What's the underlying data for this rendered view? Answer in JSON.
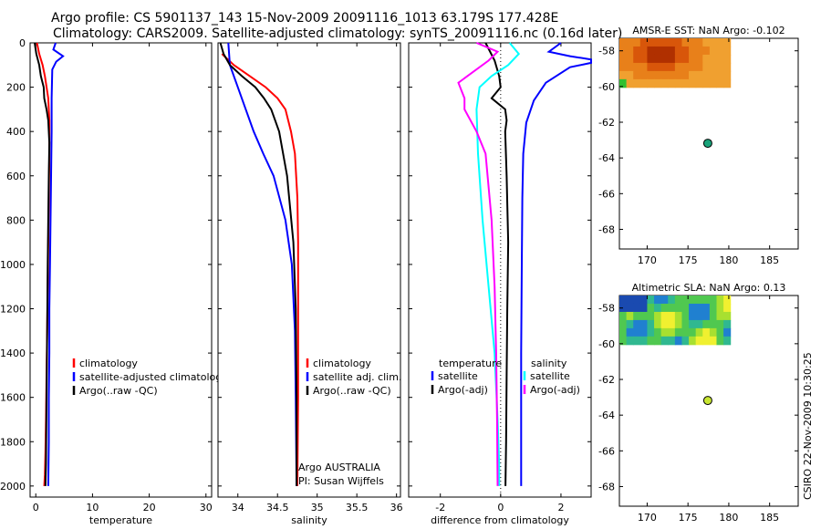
{
  "header": {
    "line1": "Argo profile: CS 5901137_143 15-Nov-2009 20091116_1013 63.179S 177.428E",
    "line2": "Climatology: CARS2009. Satellite-adjusted climatology: synTS_20091116.nc (0.16d later)"
  },
  "credit": {
    "line1": "Argo AUSTRALIA",
    "line2": "PI: Susan Wijffels",
    "stamp": "CSIRO 22-Nov-2009 10:30:25"
  },
  "colors": {
    "climatology": "#ff0000",
    "satellite": "#0000ff",
    "argo": "#000000",
    "sal_satellite": "#00ffff",
    "sal_argo": "#ff00ff",
    "float_marker_sst": "#1aa37a",
    "float_marker_sla": "#c8e632"
  },
  "chart_data": [
    {
      "type": "line",
      "panel": "temperature",
      "xlabel": "temperature",
      "ylabel": "",
      "xlim": [
        -1,
        31
      ],
      "ylim": [
        2050,
        0
      ],
      "xticks": [
        "0",
        "10",
        "20",
        "30"
      ],
      "yticks": [
        "0",
        "200",
        "400",
        "600",
        "800",
        "1000",
        "1200",
        "1400",
        "1600",
        "1800",
        "2000"
      ],
      "legend": [
        "climatology",
        "satellite-adjusted climatology",
        "Argo(..raw -QC)"
      ],
      "legend_placement": "lower-right",
      "series": [
        {
          "name": "climatology",
          "x": [
            0.2,
            0.6,
            1.2,
            1.6,
            2.2,
            2.4,
            2.4,
            2.3,
            2.2,
            2.1,
            2.0,
            1.9,
            1.8,
            1.7,
            1.6,
            1.5
          ],
          "y": [
            0,
            50,
            100,
            150,
            250,
            350,
            500,
            700,
            900,
            1100,
            1300,
            1500,
            1700,
            1850,
            1950,
            2000
          ]
        },
        {
          "name": "satellite-adjusted climatology",
          "x": [
            3.5,
            3.1,
            4.8,
            3.6,
            2.9,
            2.8,
            2.8,
            2.7,
            2.6,
            2.5,
            2.4,
            2.4,
            2.3,
            2.3,
            2.2
          ],
          "y": [
            0,
            30,
            60,
            85,
            120,
            250,
            400,
            600,
            800,
            1000,
            1200,
            1400,
            1600,
            1800,
            2000
          ]
        },
        {
          "name": "Argo(..raw -QC)",
          "x": [
            -0.2,
            0.1,
            0.6,
            0.9,
            1.4,
            1.5,
            1.9,
            2.2,
            2.4,
            2.3,
            2.2,
            2.1,
            2.0,
            1.9,
            1.8,
            1.7
          ],
          "y": [
            0,
            50,
            100,
            150,
            200,
            250,
            300,
            350,
            450,
            600,
            800,
            1000,
            1300,
            1600,
            1900,
            2000
          ]
        }
      ]
    },
    {
      "type": "line",
      "panel": "salinity",
      "xlabel": "salinity",
      "xlim": [
        33.75,
        36.05
      ],
      "ylim": [
        2050,
        0
      ],
      "xticks": [
        "34",
        "34.5",
        "35",
        "35.5",
        "36"
      ],
      "legend": [
        "climatology",
        "satellite adj. clim.",
        "Argo(..raw -QC)"
      ],
      "legend_placement": "lower-right",
      "series": [
        {
          "name": "climatology",
          "x": [
            33.8,
            33.95,
            34.15,
            34.35,
            34.5,
            34.6,
            34.67,
            34.72,
            34.75,
            34.76,
            34.76,
            34.76,
            34.75
          ],
          "y": [
            50,
            100,
            150,
            200,
            250,
            300,
            400,
            500,
            700,
            900,
            1200,
            1600,
            2000
          ]
        },
        {
          "name": "satellite adj. clim.",
          "x": [
            33.88,
            33.9,
            34.0,
            34.1,
            34.2,
            34.32,
            34.45,
            34.6,
            34.68,
            34.72,
            34.73,
            34.74
          ],
          "y": [
            0,
            100,
            200,
            300,
            400,
            500,
            600,
            800,
            1000,
            1300,
            1600,
            2000
          ]
        },
        {
          "name": "Argo(..raw -QC)",
          "x": [
            33.78,
            33.82,
            33.9,
            34.05,
            34.22,
            34.33,
            34.42,
            34.52,
            34.62,
            34.7,
            34.73,
            34.74,
            34.74
          ],
          "y": [
            0,
            50,
            100,
            150,
            200,
            250,
            300,
            400,
            600,
            900,
            1200,
            1600,
            2000
          ]
        }
      ],
      "annotations": [
        "Argo AUSTRALIA",
        "PI: Susan Wijffels"
      ]
    },
    {
      "type": "line",
      "panel": "difference",
      "xlabel": "difference from climatology",
      "xlim": [
        -3.05,
        3.0
      ],
      "ylim": [
        2050,
        0
      ],
      "xticks": [
        "-2",
        "0",
        "2"
      ],
      "legend_groups": [
        {
          "title": "temperature",
          "entries": [
            "satellite",
            "Argo(-adj)"
          ]
        },
        {
          "title": "salinity",
          "entries": [
            "satellite",
            "Argo(-adj)"
          ]
        }
      ],
      "legend_placement": "lower-center",
      "series": [
        {
          "name": "temperature satellite",
          "x": [
            2.0,
            1.6,
            2.3,
            3.0,
            3.0,
            2.3,
            1.5,
            1.1,
            0.85,
            0.75,
            0.72,
            0.7,
            0.68,
            0.68,
            0.68
          ],
          "y": [
            0,
            40,
            60,
            75,
            90,
            110,
            180,
            260,
            360,
            500,
            700,
            1000,
            1400,
            1800,
            2000
          ]
        },
        {
          "name": "temperature Argo(-adj)",
          "x": [
            -0.5,
            -0.2,
            -0.05,
            0.0,
            -0.3,
            0.15,
            0.2,
            0.15,
            0.2,
            0.25,
            0.22,
            0.2,
            0.18,
            0.16
          ],
          "y": [
            0,
            80,
            150,
            200,
            250,
            300,
            350,
            400,
            600,
            900,
            1200,
            1500,
            1800,
            2000
          ]
        },
        {
          "name": "salinity satellite",
          "x": [
            0.3,
            0.6,
            0.25,
            -0.3,
            -0.7,
            -0.8,
            -0.75,
            -0.6,
            -0.4,
            -0.2,
            -0.1,
            -0.05,
            -0.05
          ],
          "y": [
            0,
            50,
            100,
            150,
            200,
            300,
            500,
            800,
            1100,
            1400,
            1700,
            1900,
            2000
          ]
        },
        {
          "name": "salinity Argo(-adj)",
          "x": [
            -0.8,
            -0.1,
            -0.4,
            -1.4,
            -1.2,
            -1.2,
            -0.8,
            -0.5,
            -0.3,
            -0.2,
            -0.15,
            -0.12,
            -0.1
          ],
          "y": [
            0,
            40,
            80,
            180,
            250,
            300,
            400,
            500,
            800,
            1100,
            1400,
            1700,
            2000
          ]
        }
      ]
    },
    {
      "type": "heatmap",
      "panel": "sst",
      "title": "AMSR-E SST: NaN Argo: -0.102",
      "xlim": [
        166.6,
        188.5
      ],
      "ylim": [
        -69.1,
        -57.3
      ],
      "xticks": [
        "170",
        "175",
        "180",
        "185"
      ],
      "yticks": [
        "-58",
        "-60",
        "-62",
        "-64",
        "-66",
        "-68"
      ],
      "float_position": {
        "lon": 177.428,
        "lat": -63.179
      }
    },
    {
      "type": "heatmap",
      "panel": "sla",
      "title": "Altimetric SLA: NaN Argo: 0.13",
      "xlim": [
        166.6,
        188.5
      ],
      "ylim": [
        -69.1,
        -57.3
      ],
      "xticks": [
        "170",
        "175",
        "180",
        "185"
      ],
      "yticks": [
        "-58",
        "-60",
        "-62",
        "-64",
        "-66",
        "-68"
      ],
      "float_position": {
        "lon": 177.428,
        "lat": -63.179
      }
    }
  ]
}
